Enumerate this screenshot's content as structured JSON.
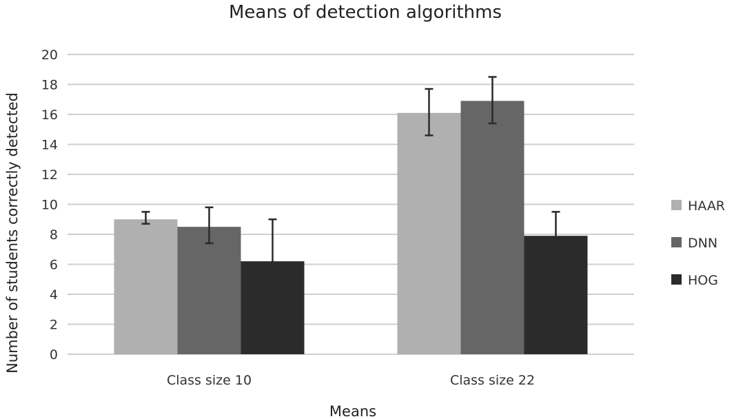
{
  "chart_data": {
    "type": "bar",
    "title": "Means of detection algorithms",
    "xlabel": "Means",
    "ylabel": "Number of students correctly detected",
    "categories": [
      "Class size 10",
      "Class size 22"
    ],
    "series": [
      {
        "name": "HAAR",
        "color": "#b0b0b0",
        "values": [
          9.0,
          16.1
        ],
        "error_low": [
          8.7,
          14.6
        ],
        "error_high": [
          9.5,
          17.7
        ]
      },
      {
        "name": "DNN",
        "color": "#666666",
        "values": [
          8.5,
          16.9
        ],
        "error_low": [
          7.4,
          15.4
        ],
        "error_high": [
          9.8,
          18.5
        ]
      },
      {
        "name": "HOG",
        "color": "#2b2b2b",
        "values": [
          6.2,
          7.9
        ],
        "error_low": [
          3.4,
          6.4
        ],
        "error_high": [
          9.0,
          9.5
        ]
      }
    ],
    "ylim": [
      0,
      20
    ],
    "yticks": [
      "0",
      "2",
      "4",
      "6",
      "8",
      "10",
      "12",
      "14",
      "16",
      "18",
      "20"
    ],
    "grid": true,
    "legend": "right"
  }
}
